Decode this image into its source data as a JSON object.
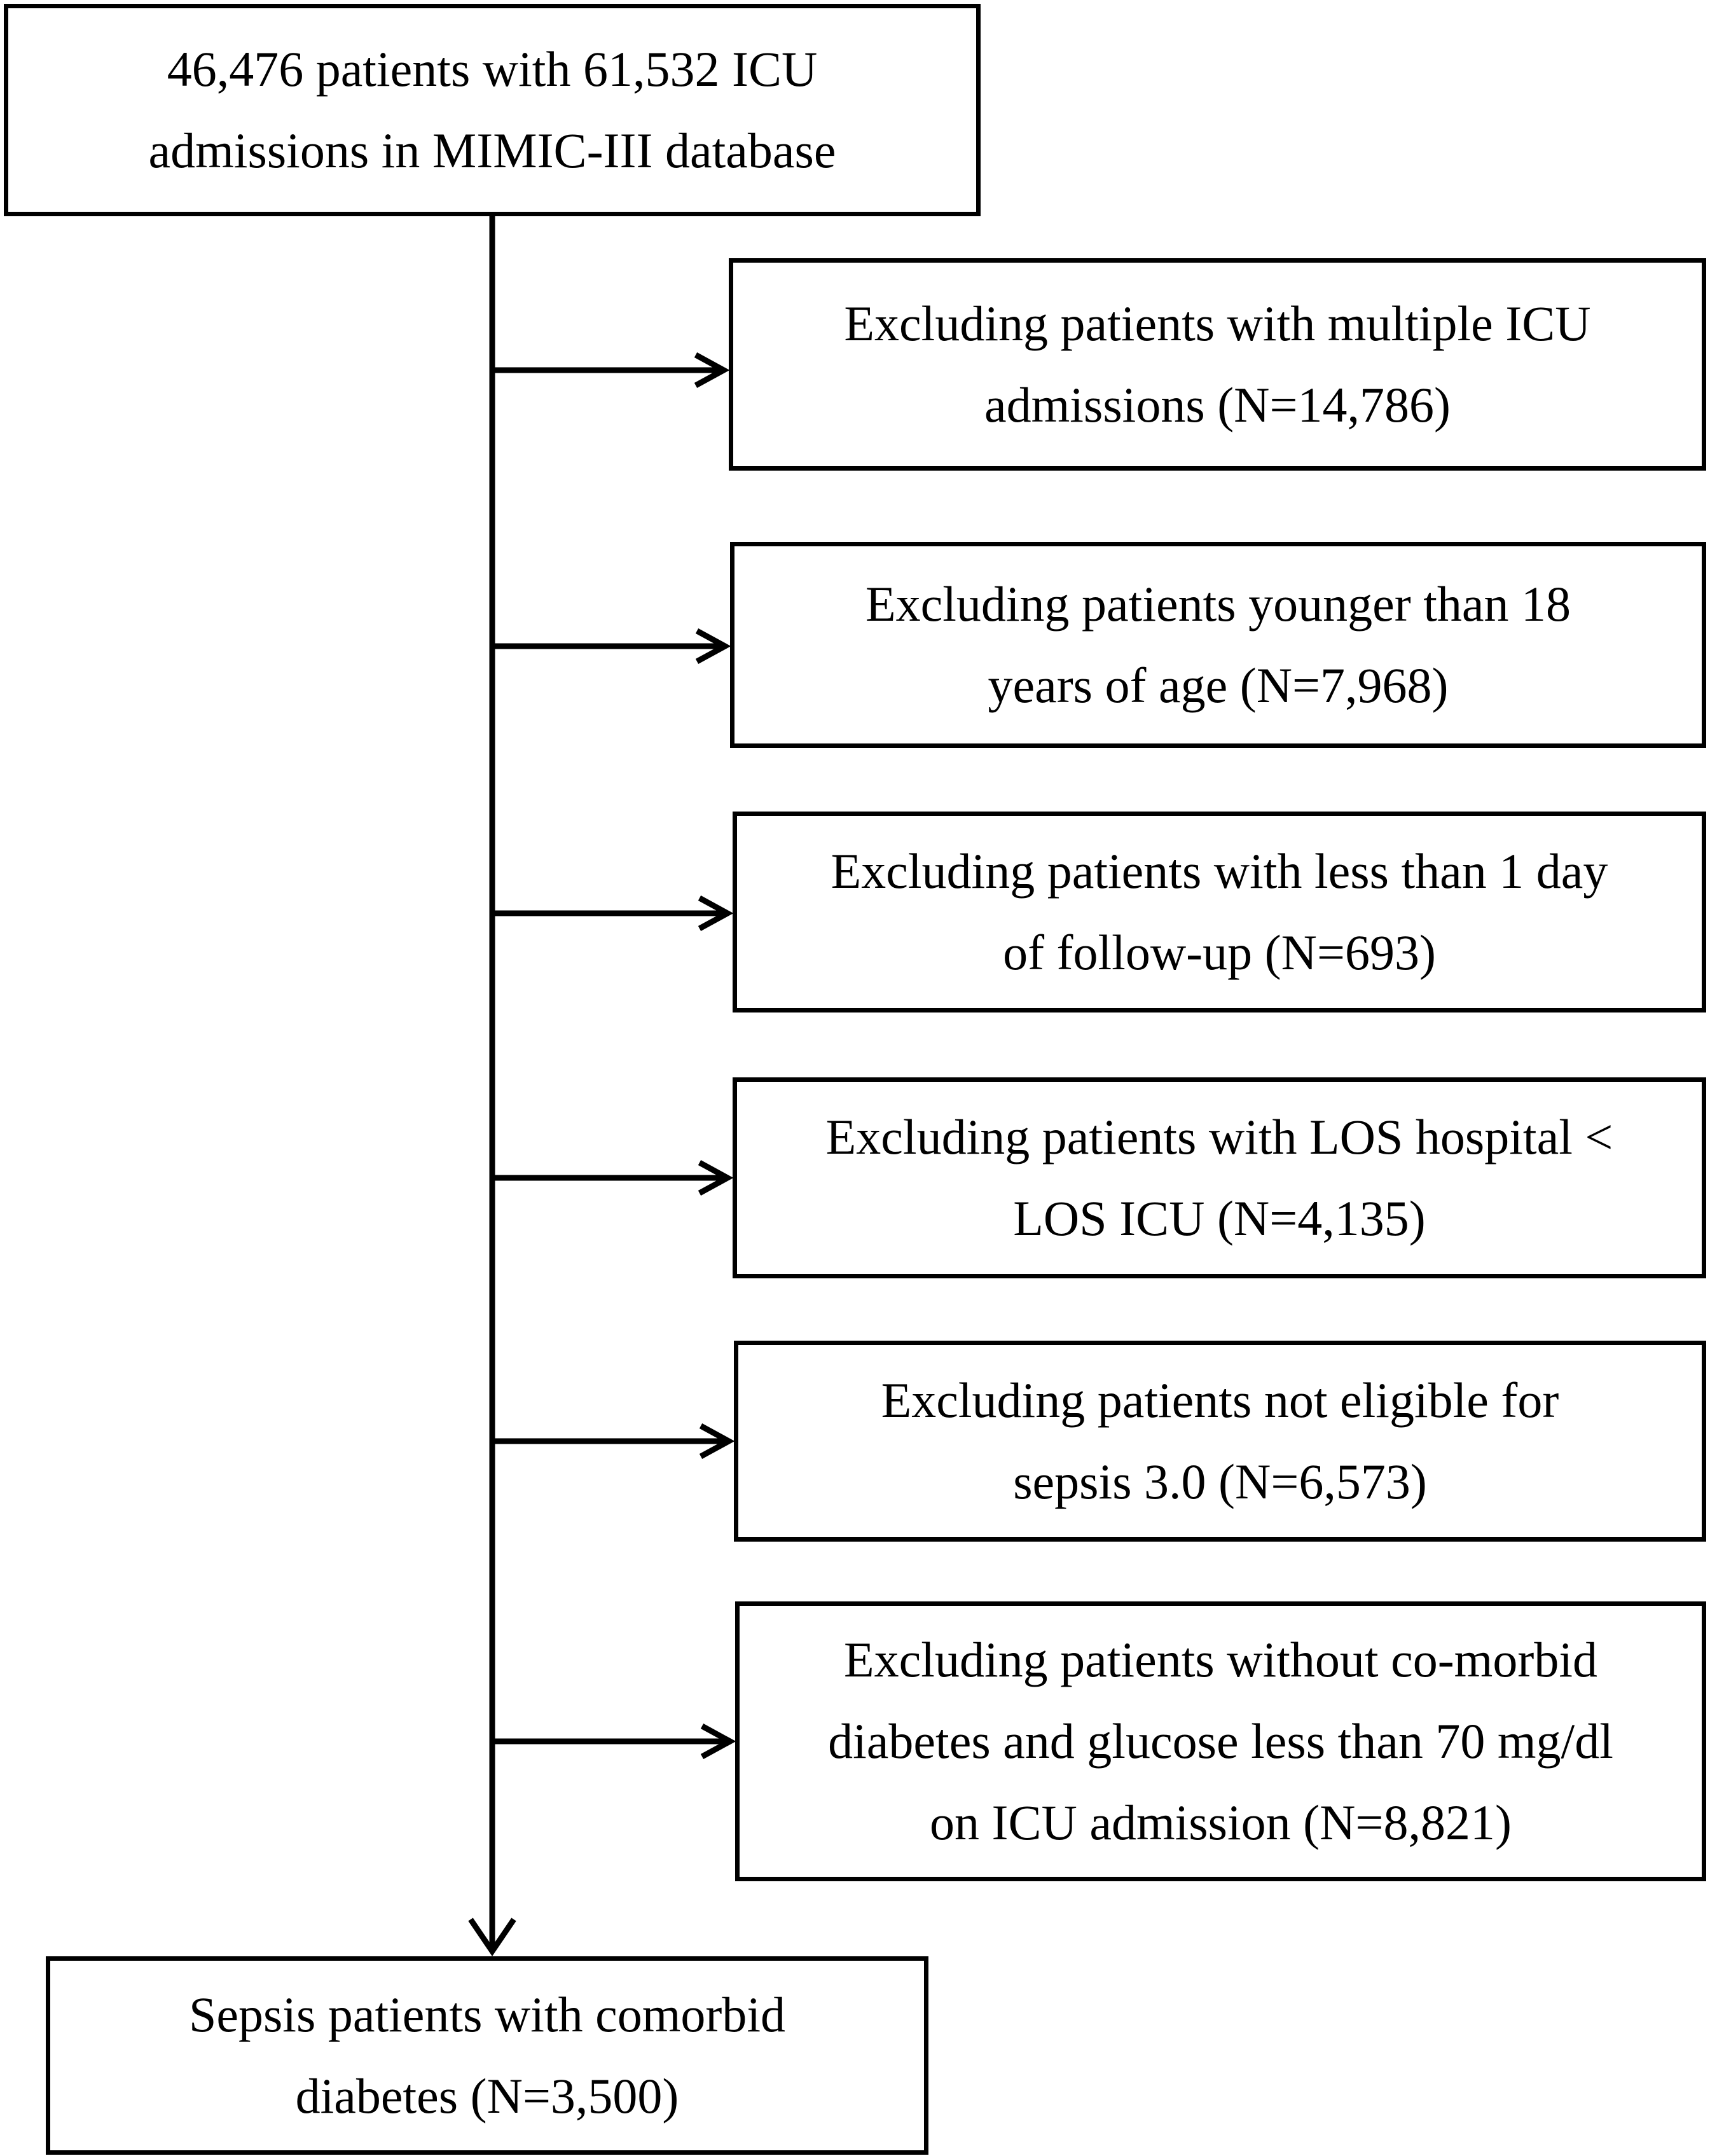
{
  "flowchart": {
    "start": {
      "lines": [
        "46,476 patients with 61,532 ICU",
        "admissions in MIMIC-III database"
      ]
    },
    "exclusions": [
      {
        "lines": [
          "Excluding patients with multiple ICU",
          "admissions (N=14,786)"
        ]
      },
      {
        "lines": [
          "Excluding patients younger than 18",
          "years of age (N=7,968)"
        ]
      },
      {
        "lines": [
          "Excluding patients with less than 1 day",
          "of follow-up (N=693)"
        ]
      },
      {
        "lines": [
          "Excluding patients with LOS hospital <",
          "LOS ICU (N=4,135)"
        ]
      },
      {
        "lines": [
          "Excluding patients not eligible for",
          "sepsis 3.0 (N=6,573)"
        ]
      },
      {
        "lines": [
          "Excluding patients without co-morbid",
          "diabetes and glucose less than 70 mg/dl",
          "on ICU admission (N=8,821)"
        ]
      }
    ],
    "final": {
      "lines": [
        "Sepsis patients with comorbid",
        "diabetes (N=3,500)"
      ]
    }
  }
}
